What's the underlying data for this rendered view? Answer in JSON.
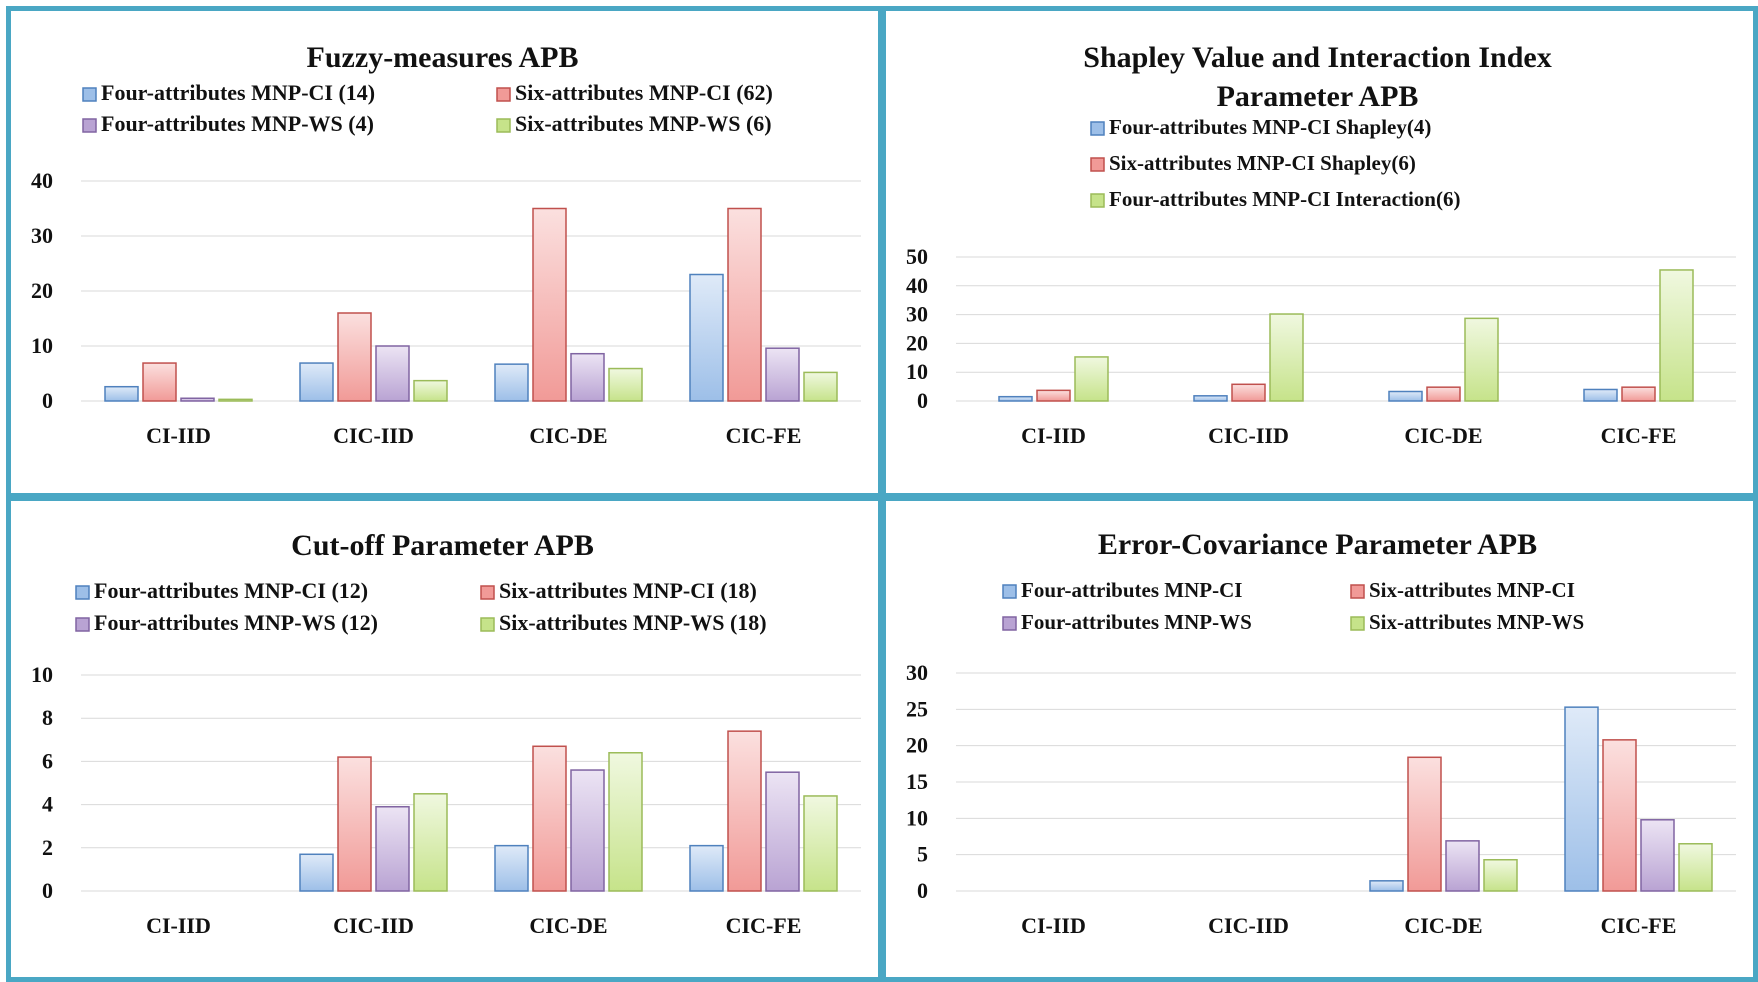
{
  "colors": {
    "border": "#4aa7c4",
    "grid": "#d9d9d9",
    "blue": {
      "stroke": "#4f81bd",
      "light": "#dfeaf8",
      "dark": "#9dbfe8"
    },
    "red": {
      "stroke": "#c0504d",
      "light": "#fbe0df",
      "dark": "#f19a97"
    },
    "purple": {
      "stroke": "#8064a2",
      "light": "#ece4f4",
      "dark": "#b9a3d3"
    },
    "green": {
      "stroke": "#9bbb59",
      "light": "#f0f8e0",
      "dark": "#c6e38a"
    }
  },
  "chart_data": [
    {
      "type": "bar",
      "title": [
        "Fuzzy-measures APB"
      ],
      "categories": [
        "CI-IID",
        "CIC-IID",
        "CIC-DE",
        "CIC-FE"
      ],
      "ylim": [
        0,
        40
      ],
      "yticks": [
        0,
        10,
        20,
        30,
        40
      ],
      "grid": true,
      "legend_columns": 2,
      "series": [
        {
          "name": "Four-attributes MNP-CI (14)",
          "color": "blue",
          "values": [
            2.6,
            6.9,
            6.7,
            23.0
          ]
        },
        {
          "name": "Six-attributes MNP-CI (62)",
          "color": "red",
          "values": [
            6.9,
            16.0,
            35.0,
            35.0
          ]
        },
        {
          "name": "Four-attributes MNP-WS (4)",
          "color": "purple",
          "values": [
            0.5,
            10.0,
            8.6,
            9.6
          ]
        },
        {
          "name": "Six-attributes MNP-WS (6)",
          "color": "green",
          "values": [
            0.3,
            3.7,
            5.9,
            5.2
          ]
        }
      ]
    },
    {
      "type": "bar",
      "title": [
        "Shapley Value and Interaction Index",
        "Parameter APB"
      ],
      "categories": [
        "CI-IID",
        "CIC-IID",
        "CIC-DE",
        "CIC-FE"
      ],
      "ylim": [
        0,
        50
      ],
      "yticks": [
        0,
        10,
        20,
        30,
        40,
        50
      ],
      "grid": true,
      "legend_columns": 1,
      "series": [
        {
          "name": "Four-attributes MNP-CI Shapley(4)",
          "color": "blue",
          "values": [
            1.5,
            1.8,
            3.3,
            4.0
          ]
        },
        {
          "name": "Six-attributes MNP-CI Shapley(6)",
          "color": "red",
          "values": [
            3.7,
            5.8,
            4.8,
            4.8
          ]
        },
        {
          "name": "Four-attributes MNP-CI Interaction(6)",
          "color": "green",
          "values": [
            15.3,
            30.2,
            28.7,
            45.5
          ]
        }
      ]
    },
    {
      "type": "bar",
      "title": [
        "Cut-off Parameter APB"
      ],
      "categories": [
        "CI-IID",
        "CIC-IID",
        "CIC-DE",
        "CIC-FE"
      ],
      "ylim": [
        0,
        10
      ],
      "yticks": [
        0,
        2,
        4,
        6,
        8,
        10
      ],
      "grid": true,
      "legend_columns": 2,
      "series": [
        {
          "name": "Four-attributes MNP-CI (12)",
          "color": "blue",
          "values": [
            0,
            1.7,
            2.1,
            2.1
          ]
        },
        {
          "name": "Six-attributes MNP-CI (18)",
          "color": "red",
          "values": [
            0,
            6.2,
            6.7,
            7.4
          ]
        },
        {
          "name": "Four-attributes MNP-WS (12)",
          "color": "purple",
          "values": [
            0,
            3.9,
            5.6,
            5.5
          ]
        },
        {
          "name": "Six-attributes MNP-WS (18)",
          "color": "green",
          "values": [
            0,
            4.5,
            6.4,
            4.4
          ]
        }
      ]
    },
    {
      "type": "bar",
      "title": [
        "Error-Covariance Parameter APB"
      ],
      "categories": [
        "CI-IID",
        "CIC-IID",
        "CIC-DE",
        "CIC-FE"
      ],
      "ylim": [
        0,
        30
      ],
      "yticks": [
        0,
        5,
        10,
        15,
        20,
        25,
        30
      ],
      "grid": true,
      "legend_columns": 2,
      "series": [
        {
          "name": "Four-attributes MNP-CI",
          "color": "blue",
          "values": [
            0,
            0,
            1.4,
            25.3
          ]
        },
        {
          "name": "Six-attributes MNP-CI",
          "color": "red",
          "values": [
            0,
            0,
            18.4,
            20.8
          ]
        },
        {
          "name": "Four-attributes MNP-WS",
          "color": "purple",
          "values": [
            0,
            0,
            6.9,
            9.8
          ]
        },
        {
          "name": "Six-attributes MNP-WS",
          "color": "green",
          "values": [
            0,
            0,
            4.3,
            6.5
          ]
        }
      ]
    }
  ]
}
